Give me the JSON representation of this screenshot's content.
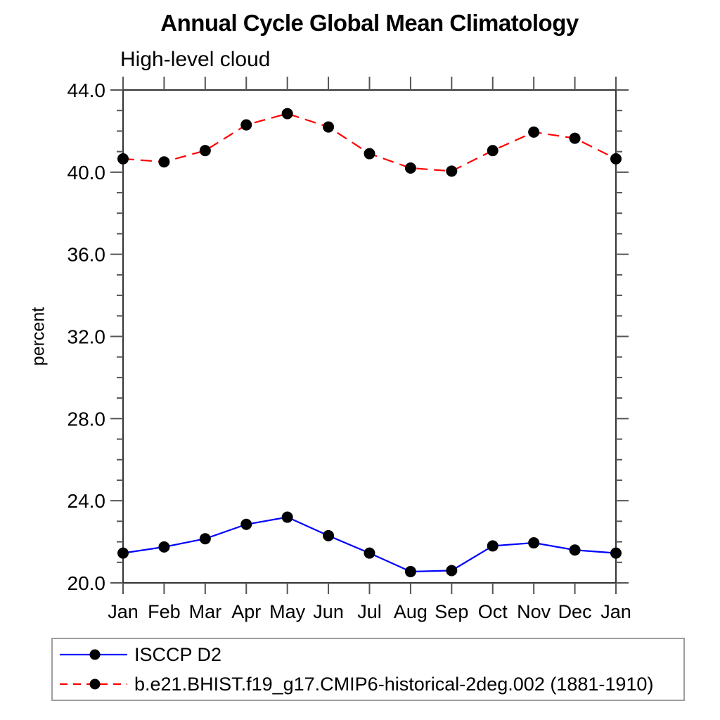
{
  "page": {
    "background": "#ffffff"
  },
  "chart_data": {
    "type": "line",
    "title": "Annual Cycle Global Mean Climatology",
    "subtitle": "High-level cloud",
    "ylabel": "percent",
    "xlabel": "",
    "x_tick_labels": [
      "Jan",
      "Feb",
      "Mar",
      "Apr",
      "May",
      "Jun",
      "Jul",
      "Aug",
      "Sep",
      "Oct",
      "Nov",
      "Dec",
      "Jan"
    ],
    "ylim": [
      20.0,
      44.0
    ],
    "y_major_ticks": [
      20,
      24,
      28,
      32,
      36,
      40,
      44
    ],
    "y_major_tick_labels": [
      "20.0",
      "24.0",
      "28.0",
      "32.0",
      "36.0",
      "40.0",
      "44.0"
    ],
    "y_minor_tick_step": 1.0,
    "grid": false,
    "legend_position": "bottom-left",
    "axis_color": "#333333",
    "tick_color": "#555555",
    "marker_color": "#000000",
    "series": [
      {
        "name": "ISCCP D2",
        "color": "#0000ff",
        "line_style": "solid",
        "marker": "filled-circle",
        "values": [
          21.45,
          21.75,
          22.15,
          22.85,
          23.2,
          22.3,
          21.45,
          20.55,
          20.6,
          21.8,
          21.95,
          21.6,
          21.45
        ]
      },
      {
        "name": "b.e21.BHIST.f19_g17.CMIP6-historical-2deg.002 (1881-1910)",
        "color": "#ff0000",
        "line_style": "dashed",
        "marker": "filled-circle",
        "values": [
          40.65,
          40.5,
          41.05,
          42.3,
          42.85,
          42.2,
          40.9,
          40.2,
          40.05,
          41.05,
          41.95,
          41.65,
          40.65
        ]
      }
    ]
  }
}
